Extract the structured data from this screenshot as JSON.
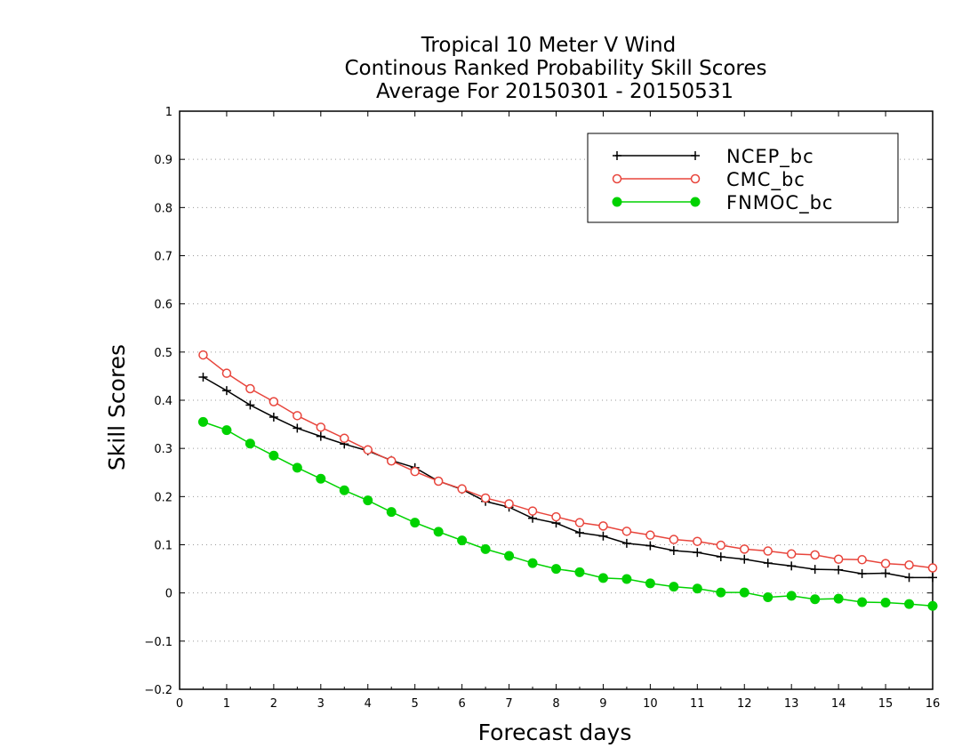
{
  "chart_data": {
    "type": "line",
    "title": [
      "Tropical 10 Meter V Wind",
      "Continous Ranked Probability Skill Scores",
      "Average For 20150301 - 20150531"
    ],
    "xlabel": "Forecast days",
    "ylabel": "Skill Scores",
    "xlim": [
      0,
      16
    ],
    "ylim": [
      -0.2,
      1
    ],
    "xticks": [
      "0",
      "1",
      "2",
      "3",
      "4",
      "5",
      "6",
      "7",
      "8",
      "9",
      "10",
      "11",
      "12",
      "13",
      "14",
      "15",
      "16"
    ],
    "yticks": [
      "−0.2",
      "−0.1",
      "0",
      "0.1",
      "0.2",
      "0.3",
      "0.4",
      "0.5",
      "0.6",
      "0.7",
      "0.8",
      "0.9",
      "1"
    ],
    "grid": "horizontal dotted",
    "legend_position": "top-right",
    "x": [
      0.5,
      1,
      1.5,
      2,
      2.5,
      3,
      3.5,
      4,
      4.5,
      5,
      5.5,
      6,
      6.5,
      7,
      7.5,
      8,
      8.5,
      9,
      9.5,
      10,
      10.5,
      11,
      11.5,
      12,
      12.5,
      13,
      13.5,
      14,
      14.5,
      15,
      15.5,
      16
    ],
    "series": [
      {
        "name": "NCEP_bc",
        "color": "#000000",
        "marker": "plus",
        "values": [
          0.448,
          0.42,
          0.39,
          0.365,
          0.342,
          0.325,
          0.309,
          0.295,
          0.275,
          0.26,
          0.232,
          0.215,
          0.19,
          0.178,
          0.155,
          0.145,
          0.125,
          0.118,
          0.103,
          0.098,
          0.088,
          0.084,
          0.075,
          0.07,
          0.062,
          0.056,
          0.049,
          0.048,
          0.04,
          0.041,
          0.032,
          0.032
        ]
      },
      {
        "name": "CMC_bc",
        "color": "#e8453c",
        "marker": "open-circle",
        "values": [
          0.494,
          0.456,
          0.424,
          0.397,
          0.368,
          0.344,
          0.321,
          0.297,
          0.274,
          0.252,
          0.232,
          0.216,
          0.197,
          0.185,
          0.17,
          0.158,
          0.146,
          0.139,
          0.128,
          0.12,
          0.111,
          0.107,
          0.099,
          0.091,
          0.087,
          0.081,
          0.079,
          0.07,
          0.069,
          0.061,
          0.058,
          0.052
        ]
      },
      {
        "name": "FNMOC_bc",
        "color": "#00d200",
        "marker": "filled-circle",
        "values": [
          0.355,
          0.338,
          0.31,
          0.285,
          0.26,
          0.237,
          0.213,
          0.192,
          0.168,
          0.146,
          0.127,
          0.109,
          0.091,
          0.077,
          0.062,
          0.05,
          0.043,
          0.031,
          0.029,
          0.02,
          0.013,
          0.009,
          0.001,
          0.001,
          -0.009,
          -0.006,
          -0.013,
          -0.012,
          -0.019,
          -0.02,
          -0.023,
          -0.027
        ]
      }
    ]
  }
}
